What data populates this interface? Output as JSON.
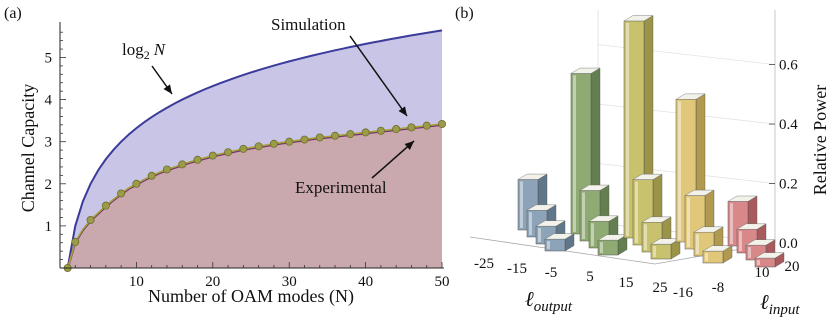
{
  "panels": {
    "a": "(a)",
    "b": "(b)"
  },
  "chart_data": [
    {
      "type": "line",
      "panel": "(a)",
      "xlabel": "Number of OAM modes (N)",
      "ylabel": "Channel Capacity",
      "xlim": [
        0,
        50
      ],
      "ylim": [
        0,
        5.7
      ],
      "x_ticks": [
        "10",
        "20",
        "30",
        "40",
        "50"
      ],
      "y_ticks": [
        "1",
        "2",
        "3",
        "4",
        "5"
      ],
      "grid": false,
      "annotations": {
        "log_label": "log",
        "log_sub": "2",
        "log_var": "N",
        "simulation": "Simulation",
        "experimental": "Experimental"
      },
      "x": [
        1,
        2,
        3,
        4,
        5,
        6,
        7,
        8,
        9,
        10,
        11,
        12,
        13,
        14,
        15,
        16,
        17,
        18,
        19,
        20,
        21,
        22,
        23,
        24,
        25,
        26,
        27,
        28,
        29,
        30,
        31,
        32,
        33,
        34,
        35,
        36,
        37,
        38,
        39,
        40,
        41,
        42,
        43,
        44,
        45,
        46,
        47,
        48,
        49,
        50
      ],
      "series": [
        {
          "name": "log",
          "color": "#3b3b9a",
          "fill": "#c8c5e6",
          "values": [
            0,
            1.0,
            1.585,
            2.0,
            2.322,
            2.585,
            2.807,
            3.0,
            3.17,
            3.322,
            3.459,
            3.585,
            3.7,
            3.807,
            3.907,
            4.0,
            4.087,
            4.17,
            4.248,
            4.322,
            4.392,
            4.459,
            4.524,
            4.585,
            4.644,
            4.7,
            4.755,
            4.807,
            4.858,
            4.907,
            4.954,
            5.0,
            5.044,
            5.087,
            5.129,
            5.17,
            5.209,
            5.248,
            5.285,
            5.322,
            5.358,
            5.392,
            5.426,
            5.459,
            5.492,
            5.524,
            5.555,
            5.585,
            5.615,
            5.644
          ]
        },
        {
          "name": "Simulation",
          "color": "#a3a33a",
          "marker_color": "#9c9c48",
          "values": [
            0,
            0.62,
            0.92,
            1.14,
            1.31,
            1.48,
            1.63,
            1.77,
            1.9,
            2.0,
            2.1,
            2.19,
            2.27,
            2.34,
            2.4,
            2.46,
            2.52,
            2.57,
            2.62,
            2.67,
            2.71,
            2.75,
            2.79,
            2.83,
            2.86,
            2.89,
            2.92,
            2.95,
            2.98,
            3.0,
            3.03,
            3.05,
            3.08,
            3.1,
            3.12,
            3.14,
            3.16,
            3.18,
            3.2,
            3.22,
            3.24,
            3.26,
            3.28,
            3.3,
            3.32,
            3.34,
            3.36,
            3.38,
            3.4,
            3.42
          ]
        },
        {
          "name": "Experimental",
          "color": "#7a2f72",
          "fill": "#c9a9ad",
          "values": [
            0,
            0.6,
            0.9,
            1.12,
            1.29,
            1.46,
            1.61,
            1.75,
            1.88,
            1.98,
            2.08,
            2.17,
            2.25,
            2.32,
            2.38,
            2.44,
            2.5,
            2.55,
            2.6,
            2.65,
            2.69,
            2.73,
            2.77,
            2.81,
            2.84,
            2.87,
            2.9,
            2.93,
            2.96,
            2.98,
            3.01,
            3.03,
            3.06,
            3.08,
            3.1,
            3.12,
            3.14,
            3.16,
            3.18,
            3.2,
            3.22,
            3.24,
            3.26,
            3.28,
            3.3,
            3.32,
            3.34,
            3.36,
            3.38,
            3.4
          ]
        }
      ],
      "marker_x": [
        1,
        2,
        4,
        6,
        8,
        10,
        12,
        14,
        16,
        18,
        20,
        22,
        24,
        26,
        28,
        30,
        32,
        34,
        36,
        38,
        40,
        42,
        44,
        46,
        48,
        50
      ]
    },
    {
      "type": "bar3d",
      "panel": "(b)",
      "xlabel_main": "ℓ",
      "xlabel_sub": "output",
      "ylabel_main": "ℓ",
      "ylabel_sub": "input",
      "zlabel": "Relative Power",
      "x_ticks": [
        "-25",
        "-15",
        "-5",
        "5",
        "15",
        "25"
      ],
      "y_ticks": [
        "-16",
        "-8",
        "10",
        "20"
      ],
      "z_ticks": [
        "0.0",
        "0.2",
        "0.4",
        "0.6"
      ],
      "zlim": [
        0,
        0.75
      ],
      "groups": [
        {
          "color": "#8ca3b8",
          "side": "#5f7789",
          "bars": [
            0.17,
            0.09,
            0.06,
            0.04
          ]
        },
        {
          "color": "#8faa72",
          "side": "#647f4f",
          "bars": [
            0.54,
            0.17,
            0.09,
            0.05
          ]
        },
        {
          "color": "#c8c16d",
          "side": "#9a9348",
          "bars": [
            0.73,
            0.22,
            0.1,
            0.05
          ]
        },
        {
          "color": "#e0c779",
          "side": "#b19a4f",
          "bars": [
            0.48,
            0.18,
            0.08,
            0.04
          ]
        },
        {
          "color": "#d9888a",
          "side": "#a85a5d",
          "bars": [
            0.15,
            0.08,
            0.05,
            0.03
          ]
        }
      ]
    }
  ]
}
